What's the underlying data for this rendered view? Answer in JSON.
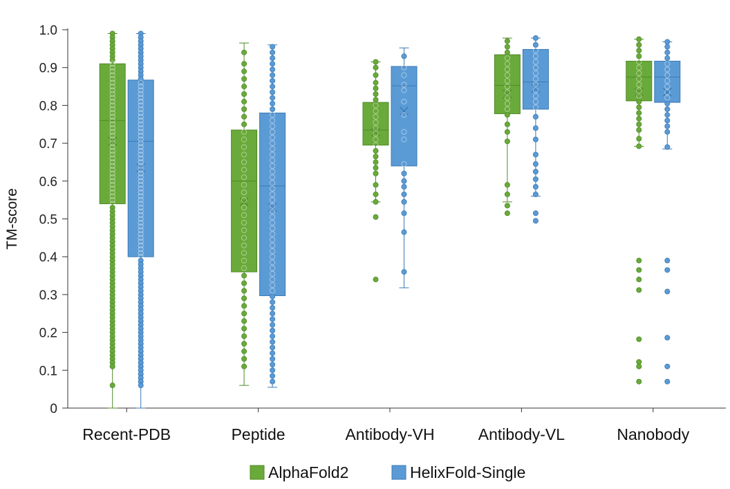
{
  "chart_data": {
    "type": "box",
    "title": "",
    "ylabel": "TM-score",
    "xlabel": "",
    "ylim": [
      0,
      1.0
    ],
    "yticks": [
      0,
      0.1,
      0.2,
      0.3,
      0.4,
      0.5,
      0.6,
      0.7,
      0.8,
      0.9,
      1.0
    ],
    "ytick_labels": [
      "0",
      "0.1",
      "0.2",
      "0.3",
      "0.4",
      "0.5",
      "0.6",
      "0.7",
      "0.8",
      "0.9",
      "1.0"
    ],
    "categories": [
      "Recent-PDB",
      "Peptide",
      "Antibody-VH",
      "Antibody-VL",
      "Nanobody"
    ],
    "legend_position": "bottom-center",
    "series": [
      {
        "name": "AlphaFold2",
        "color": "#6aaa3a",
        "stroke": "#4e8a26",
        "boxes": [
          {
            "q1": 0.54,
            "median": 0.76,
            "q3": 0.91,
            "mean": 0.705,
            "whisker_low": 0.0,
            "whisker_high": 0.99,
            "points": [
              0.99,
              0.98,
              0.97,
              0.96,
              0.95,
              0.94,
              0.93,
              0.92,
              0.91,
              0.9,
              0.89,
              0.88,
              0.87,
              0.86,
              0.85,
              0.84,
              0.83,
              0.82,
              0.81,
              0.8,
              0.79,
              0.78,
              0.77,
              0.76,
              0.75,
              0.74,
              0.73,
              0.72,
              0.71,
              0.7,
              0.69,
              0.68,
              0.67,
              0.66,
              0.65,
              0.64,
              0.63,
              0.62,
              0.61,
              0.6,
              0.59,
              0.58,
              0.57,
              0.56,
              0.55,
              0.54,
              0.53,
              0.52,
              0.51,
              0.5,
              0.49,
              0.48,
              0.47,
              0.46,
              0.45,
              0.44,
              0.43,
              0.42,
              0.41,
              0.4,
              0.39,
              0.38,
              0.37,
              0.36,
              0.35,
              0.34,
              0.33,
              0.32,
              0.31,
              0.3,
              0.29,
              0.28,
              0.27,
              0.26,
              0.25,
              0.24,
              0.23,
              0.22,
              0.21,
              0.2,
              0.19,
              0.18,
              0.17,
              0.16,
              0.15,
              0.14,
              0.13,
              0.12,
              0.11,
              0.06
            ]
          },
          {
            "q1": 0.36,
            "median": 0.6,
            "q3": 0.735,
            "mean": 0.545,
            "whisker_low": 0.06,
            "whisker_high": 0.965,
            "points": [
              0.94,
              0.91,
              0.89,
              0.87,
              0.85,
              0.83,
              0.81,
              0.79,
              0.77,
              0.75,
              0.73,
              0.71,
              0.69,
              0.67,
              0.65,
              0.63,
              0.61,
              0.59,
              0.57,
              0.55,
              0.53,
              0.51,
              0.49,
              0.47,
              0.45,
              0.43,
              0.41,
              0.39,
              0.37,
              0.35,
              0.33,
              0.31,
              0.29,
              0.27,
              0.25,
              0.23,
              0.21,
              0.19,
              0.17,
              0.15,
              0.13,
              0.11
            ]
          },
          {
            "q1": 0.695,
            "median": 0.735,
            "q3": 0.808,
            "mean": 0.73,
            "whisker_low": 0.545,
            "whisker_high": 0.915,
            "points": [
              0.915,
              0.9,
              0.88,
              0.86,
              0.845,
              0.83,
              0.815,
              0.8,
              0.785,
              0.77,
              0.755,
              0.74,
              0.725,
              0.71,
              0.695,
              0.68,
              0.665,
              0.65,
              0.635,
              0.62,
              0.59,
              0.565,
              0.545,
              0.505,
              0.34
            ]
          },
          {
            "q1": 0.778,
            "median": 0.853,
            "q3": 0.934,
            "mean": 0.83,
            "whisker_low": 0.545,
            "whisker_high": 0.978,
            "points": [
              0.97,
              0.955,
              0.94,
              0.925,
              0.91,
              0.895,
              0.88,
              0.865,
              0.85,
              0.835,
              0.82,
              0.805,
              0.79,
              0.775,
              0.75,
              0.73,
              0.705,
              0.59,
              0.565,
              0.535,
              0.515
            ]
          },
          {
            "q1": 0.812,
            "median": 0.875,
            "q3": 0.917,
            "mean": 0.835,
            "whisker_low": 0.692,
            "whisker_high": 0.975,
            "points": [
              0.975,
              0.96,
              0.945,
              0.93,
              0.915,
              0.9,
              0.885,
              0.87,
              0.855,
              0.84,
              0.825,
              0.81,
              0.795,
              0.78,
              0.765,
              0.75,
              0.735,
              0.712,
              0.692,
              0.39,
              0.365,
              0.34,
              0.312,
              0.182,
              0.122,
              0.11,
              0.07
            ]
          }
        ]
      },
      {
        "name": "HelixFold-Single",
        "color": "#5b9bd5",
        "stroke": "#3a78b5",
        "boxes": [
          {
            "q1": 0.4,
            "median": 0.705,
            "q3": 0.867,
            "mean": 0.635,
            "whisker_low": 0.0,
            "whisker_high": 0.99,
            "points": [
              0.99,
              0.98,
              0.97,
              0.96,
              0.95,
              0.94,
              0.93,
              0.92,
              0.91,
              0.9,
              0.89,
              0.88,
              0.87,
              0.86,
              0.85,
              0.84,
              0.83,
              0.82,
              0.81,
              0.8,
              0.79,
              0.78,
              0.77,
              0.76,
              0.75,
              0.74,
              0.73,
              0.72,
              0.71,
              0.7,
              0.69,
              0.68,
              0.67,
              0.66,
              0.65,
              0.64,
              0.63,
              0.62,
              0.61,
              0.6,
              0.59,
              0.58,
              0.57,
              0.56,
              0.55,
              0.54,
              0.53,
              0.52,
              0.51,
              0.5,
              0.49,
              0.48,
              0.47,
              0.46,
              0.45,
              0.44,
              0.43,
              0.42,
              0.41,
              0.4,
              0.39,
              0.38,
              0.37,
              0.36,
              0.35,
              0.34,
              0.33,
              0.32,
              0.31,
              0.3,
              0.29,
              0.28,
              0.27,
              0.26,
              0.25,
              0.24,
              0.23,
              0.22,
              0.21,
              0.2,
              0.19,
              0.18,
              0.17,
              0.16,
              0.15,
              0.14,
              0.13,
              0.12,
              0.11,
              0.1,
              0.09,
              0.08,
              0.07,
              0.06
            ]
          },
          {
            "q1": 0.297,
            "median": 0.587,
            "q3": 0.78,
            "mean": 0.53,
            "whisker_low": 0.055,
            "whisker_high": 0.96,
            "points": [
              0.955,
              0.94,
              0.925,
              0.91,
              0.895,
              0.88,
              0.865,
              0.85,
              0.835,
              0.82,
              0.805,
              0.79,
              0.775,
              0.76,
              0.745,
              0.73,
              0.715,
              0.7,
              0.685,
              0.67,
              0.655,
              0.64,
              0.625,
              0.61,
              0.595,
              0.58,
              0.565,
              0.55,
              0.535,
              0.52,
              0.505,
              0.49,
              0.475,
              0.46,
              0.445,
              0.43,
              0.415,
              0.4,
              0.385,
              0.37,
              0.355,
              0.34,
              0.325,
              0.31,
              0.295,
              0.28,
              0.265,
              0.25,
              0.235,
              0.22,
              0.205,
              0.19,
              0.175,
              0.16,
              0.145,
              0.13,
              0.115,
              0.1,
              0.085,
              0.07
            ]
          },
          {
            "q1": 0.64,
            "median": 0.852,
            "q3": 0.903,
            "mean": 0.785,
            "whisker_low": 0.318,
            "whisker_high": 0.952,
            "points": [
              0.93,
              0.9,
              0.88,
              0.855,
              0.84,
              0.81,
              0.775,
              0.73,
              0.71,
              0.645,
              0.62,
              0.6,
              0.585,
              0.565,
              0.545,
              0.515,
              0.465,
              0.36
            ]
          },
          {
            "q1": 0.79,
            "median": 0.862,
            "q3": 0.948,
            "mean": 0.845,
            "whisker_low": 0.56,
            "whisker_high": 0.978,
            "points": [
              0.978,
              0.96,
              0.945,
              0.93,
              0.915,
              0.9,
              0.885,
              0.87,
              0.855,
              0.84,
              0.825,
              0.81,
              0.795,
              0.77,
              0.74,
              0.71,
              0.67,
              0.645,
              0.625,
              0.605,
              0.585,
              0.565,
              0.515,
              0.495
            ]
          },
          {
            "q1": 0.808,
            "median": 0.875,
            "q3": 0.917,
            "mean": 0.835,
            "whisker_low": 0.685,
            "whisker_high": 0.968,
            "points": [
              0.968,
              0.955,
              0.94,
              0.925,
              0.91,
              0.895,
              0.88,
              0.865,
              0.85,
              0.835,
              0.82,
              0.805,
              0.79,
              0.775,
              0.76,
              0.745,
              0.73,
              0.69,
              0.39,
              0.365,
              0.308,
              0.186,
              0.11,
              0.07
            ]
          }
        ]
      }
    ]
  }
}
